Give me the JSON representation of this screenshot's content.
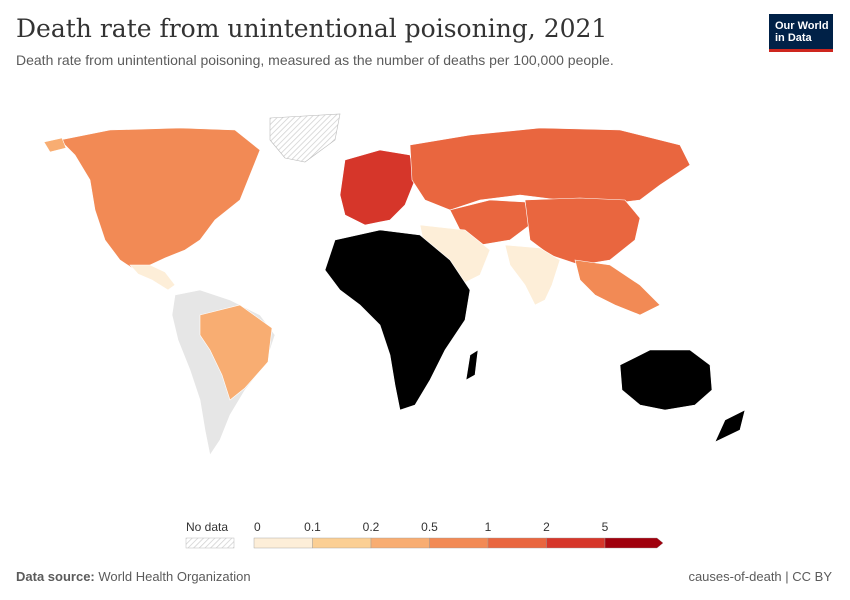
{
  "header": {
    "title": "Death rate from unintentional poisoning, 2021",
    "subtitle": "Death rate from unintentional poisoning, measured as the number of deaths per 100,000 people."
  },
  "logo": {
    "line1": "Our World",
    "line2": "in Data"
  },
  "legend": {
    "no_data_label": "No data",
    "ticks": [
      "0",
      "0.1",
      "0.2",
      "0.5",
      "1",
      "2",
      "5"
    ],
    "colors": [
      "#fdeed8",
      "#fbcf94",
      "#f8ad72",
      "#f28a55",
      "#e9663f",
      "#d6362a",
      "#a0000d"
    ],
    "no_data_color": "#e6e6e6"
  },
  "regions": [
    {
      "name": "North America",
      "color": "#f8ad72"
    },
    {
      "name": "Central America",
      "color": "#f28a55"
    },
    {
      "name": "South America",
      "color": "#f8ad72"
    },
    {
      "name": "Brazil",
      "color": "#fdeed8"
    },
    {
      "name": "Greenland",
      "color": "#e6e6e6"
    },
    {
      "name": "Europe",
      "color": "#f8ad72"
    },
    {
      "name": "Russia",
      "color": "#d6362a"
    },
    {
      "name": "Central Asia",
      "color": "#e9663f"
    },
    {
      "name": "China",
      "color": "#e9663f"
    },
    {
      "name": "India",
      "color": "#fdeed8"
    },
    {
      "name": "Africa",
      "color": "#e9663f"
    },
    {
      "name": "Australia",
      "color": "#fdeed8"
    },
    {
      "name": "Southeast Asia",
      "color": "#f28a55"
    }
  ],
  "footer": {
    "source_label": "Data source:",
    "source_value": "World Health Organization",
    "right": "causes-of-death | CC BY"
  }
}
